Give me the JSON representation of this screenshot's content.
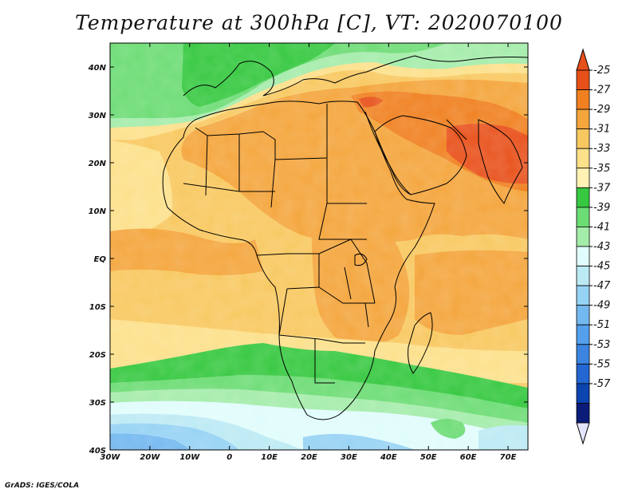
{
  "title": "Temperature at 300hPa [C], VT: 2020070100",
  "credit": "GrADS: IGES/COLA",
  "map": {
    "lon_range": [
      -30,
      75
    ],
    "lat_range": [
      -40,
      45
    ],
    "lon_tick_values": [
      -30,
      -20,
      -10,
      0,
      10,
      20,
      30,
      40,
      50,
      60,
      70
    ],
    "lon_ticks": [
      "30W",
      "20W",
      "10W",
      "0",
      "10E",
      "20E",
      "30E",
      "40E",
      "50E",
      "60E",
      "70E"
    ],
    "lat_tick_values": [
      40,
      30,
      20,
      10,
      0,
      -10,
      -20,
      -30,
      -40
    ],
    "lat_ticks": [
      "40N",
      "30N",
      "20N",
      "10N",
      "EQ",
      "10S",
      "20S",
      "30S",
      "40S"
    ]
  },
  "colorbar": {
    "labels": [
      "-25",
      "-27",
      "-29",
      "-31",
      "-33",
      "-35",
      "-37",
      "-39",
      "-41",
      "-43",
      "-45",
      "-47",
      "-49",
      "-51",
      "-53",
      "-55",
      "-57"
    ],
    "colors": [
      "#e8501a",
      "#f08020",
      "#f4a53c",
      "#f8c860",
      "#fce08a",
      "#fff2b4",
      "#36c840",
      "#6cdc74",
      "#a4ecaa",
      "#e0fcfc",
      "#bceaf4",
      "#96d2f4",
      "#74b8f0",
      "#54a0ec",
      "#3c84e0",
      "#2466d2",
      "#0c44b0",
      "#0a1c78"
    ],
    "top_arrow_color": "#e8501a",
    "bottom_arrow_color": "#e4e4fc"
  }
}
